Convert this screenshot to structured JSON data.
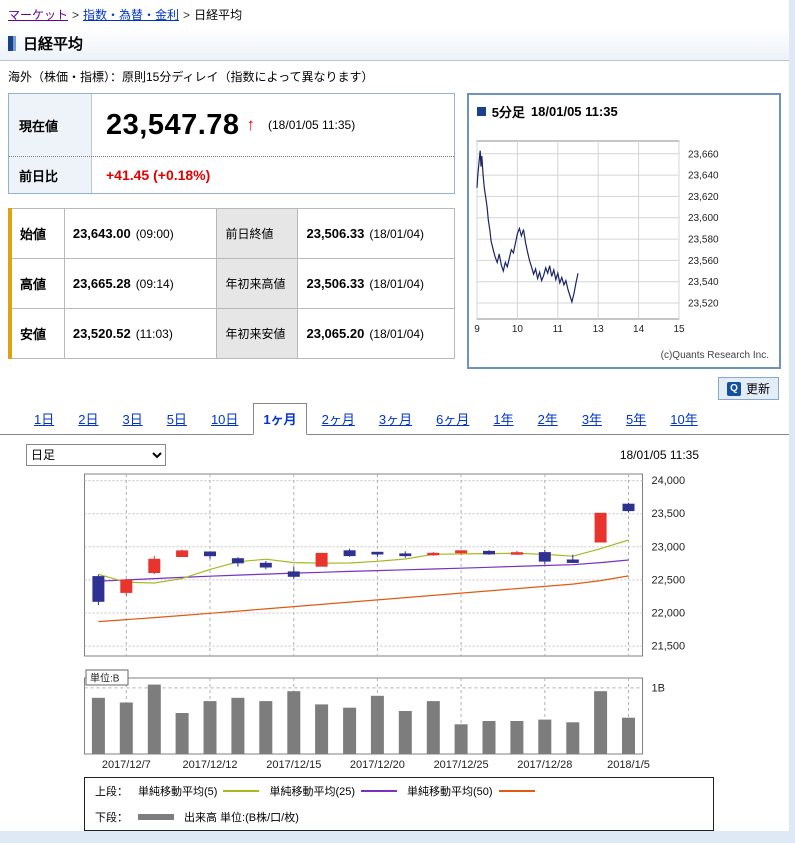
{
  "breadcrumb": {
    "separator": ">",
    "items": [
      "マーケット",
      "指数・為替・金利",
      "日経平均"
    ]
  },
  "page": {
    "title": "日経平均",
    "delay_note": "海外（株価・指標）：原則15分ディレイ（指数によって異なります）"
  },
  "quote": {
    "current_label": "現在値",
    "current_value": "23,547.78",
    "direction_arrow": "↑",
    "timestamp": "(18/01/05 11:35)",
    "change_label": "前日比",
    "change_value": "+41.45 (+0.18%)"
  },
  "stats": {
    "rows": [
      [
        {
          "label": "始値",
          "value": "23,643.00",
          "note": "(09:00)"
        },
        {
          "label": "前日終値",
          "value": "23,506.33",
          "note": "(18/01/04)"
        }
      ],
      [
        {
          "label": "高値",
          "value": "23,665.28",
          "note": "(09:14)"
        },
        {
          "label": "年初来高値",
          "value": "23,506.33",
          "note": "(18/01/04)"
        }
      ],
      [
        {
          "label": "安値",
          "value": "23,520.52",
          "note": "(11:03)"
        },
        {
          "label": "年初来安値",
          "value": "23,065.20",
          "note": "(18/01/04)"
        }
      ]
    ]
  },
  "intraday_panel": {
    "title": "5分足",
    "timestamp": "18/01/05 11:35",
    "copyright": "(c)Quants Research Inc."
  },
  "refresh_button": {
    "label": "更新",
    "icon_glyph": "Q"
  },
  "period_tabs": {
    "items": [
      "1日",
      "2日",
      "3日",
      "5日",
      "10日",
      "1ヶ月",
      "2ヶ月",
      "3ヶ月",
      "6ヶ月",
      "1年",
      "2年",
      "3年",
      "5年",
      "10年"
    ],
    "selected": "1ヶ月"
  },
  "chart_controls": {
    "interval_selected": "日足",
    "timestamp": "18/01/05 11:35"
  },
  "legend": {
    "upper_label": "上段：",
    "ma5_label": "単純移動平均(5)",
    "ma25_label": "単純移動平均(25)",
    "ma50_label": "単純移動平均(50)",
    "lower_label": "下段：",
    "volume_label": "出来高 単位:(B株/口/枚)"
  },
  "colors": {
    "accent_navy": "#16418c",
    "up_candle": "#e8342c",
    "down_candle": "#2e3192",
    "ma5": "#a8b820",
    "ma25": "#7a30c0",
    "ma50": "#e05a10",
    "volume_bar": "#7d7d7d",
    "change_positive": "#e00000",
    "intraday_line": "#1c2461"
  },
  "chart_data": [
    {
      "type": "line",
      "title": "5分足 18/01/05 11:35",
      "x_ticks": [
        9,
        10,
        11,
        13,
        14,
        15
      ],
      "lunch_break": [
        11.5,
        12.5
      ],
      "ylim": [
        23505,
        23672
      ],
      "y_ticks": [
        23520,
        23540,
        23560,
        23580,
        23600,
        23620,
        23640,
        23660
      ],
      "points": [
        [
          9.0,
          23628
        ],
        [
          9.02,
          23640
        ],
        [
          9.05,
          23652
        ],
        [
          9.08,
          23663
        ],
        [
          9.1,
          23648
        ],
        [
          9.12,
          23658
        ],
        [
          9.15,
          23640
        ],
        [
          9.18,
          23628
        ],
        [
          9.22,
          23618
        ],
        [
          9.25,
          23610
        ],
        [
          9.28,
          23598
        ],
        [
          9.32,
          23588
        ],
        [
          9.35,
          23578
        ],
        [
          9.4,
          23570
        ],
        [
          9.45,
          23563
        ],
        [
          9.5,
          23558
        ],
        [
          9.55,
          23566
        ],
        [
          9.6,
          23556
        ],
        [
          9.65,
          23550
        ],
        [
          9.7,
          23558
        ],
        [
          9.75,
          23554
        ],
        [
          9.8,
          23562
        ],
        [
          9.85,
          23570
        ],
        [
          9.9,
          23567
        ],
        [
          9.95,
          23576
        ],
        [
          10.0,
          23585
        ],
        [
          10.05,
          23590
        ],
        [
          10.1,
          23583
        ],
        [
          10.15,
          23589
        ],
        [
          10.2,
          23577
        ],
        [
          10.25,
          23568
        ],
        [
          10.3,
          23560
        ],
        [
          10.35,
          23554
        ],
        [
          10.4,
          23547
        ],
        [
          10.45,
          23552
        ],
        [
          10.5,
          23543
        ],
        [
          10.55,
          23549
        ],
        [
          10.6,
          23541
        ],
        [
          10.65,
          23546
        ],
        [
          10.7,
          23553
        ],
        [
          10.75,
          23548
        ],
        [
          10.8,
          23555
        ],
        [
          10.85,
          23545
        ],
        [
          10.9,
          23551
        ],
        [
          10.95,
          23542
        ],
        [
          11.0,
          23548
        ],
        [
          11.05,
          23539
        ],
        [
          11.1,
          23544
        ],
        [
          11.15,
          23537
        ],
        [
          11.2,
          23541
        ],
        [
          11.25,
          23533
        ],
        [
          11.3,
          23527
        ],
        [
          11.35,
          23521
        ],
        [
          11.4,
          23529
        ],
        [
          11.45,
          23539
        ],
        [
          11.5,
          23548
        ]
      ]
    },
    {
      "type": "candlestick",
      "title": "日経平均 日足（1ヶ月）",
      "ylim": [
        21350,
        24100
      ],
      "y_ticks": [
        21500,
        22000,
        22500,
        23000,
        23500,
        24000
      ],
      "dates": [
        "12/6",
        "12/7",
        "12/8",
        "12/11",
        "12/12",
        "12/13",
        "12/14",
        "12/15",
        "12/18",
        "12/19",
        "12/20",
        "12/21",
        "12/22",
        "12/25",
        "12/26",
        "12/27",
        "12/28",
        "12/29",
        "1/4",
        "1/5"
      ],
      "x_label_positions": [
        {
          "label": "2017/12/7",
          "index": 1
        },
        {
          "label": "2017/12/12",
          "index": 4
        },
        {
          "label": "2017/12/15",
          "index": 7
        },
        {
          "label": "2017/12/20",
          "index": 10
        },
        {
          "label": "2017/12/25",
          "index": 13
        },
        {
          "label": "2017/12/28",
          "index": 16
        },
        {
          "label": "2018/1/5",
          "index": 19
        }
      ],
      "ohlc": [
        [
          22550,
          22580,
          22119,
          22177
        ],
        [
          22310,
          22515,
          22262,
          22498
        ],
        [
          22612,
          22864,
          22588,
          22811
        ],
        [
          22854,
          22956,
          22850,
          22938
        ],
        [
          22922,
          22934,
          22812,
          22866
        ],
        [
          22820,
          22843,
          22703,
          22758
        ],
        [
          22750,
          22787,
          22662,
          22694
        ],
        [
          22620,
          22698,
          22520,
          22553
        ],
        [
          22707,
          22910,
          22705,
          22901
        ],
        [
          22940,
          22971,
          22851,
          22868
        ],
        [
          22917,
          22925,
          22845,
          22891
        ],
        [
          22892,
          22932,
          22834,
          22866
        ],
        [
          22890,
          22920,
          22863,
          22902
        ],
        [
          22910,
          22946,
          22881,
          22939
        ],
        [
          22930,
          22950,
          22877,
          22892
        ],
        [
          22890,
          22936,
          22880,
          22911
        ],
        [
          22912,
          22954,
          22736,
          22783
        ],
        [
          22800,
          22881,
          22753,
          22764
        ],
        [
          23073,
          23506,
          23065,
          23506
        ],
        [
          23643,
          23665,
          23520,
          23547
        ]
      ],
      "ma5": [
        22585,
        22463,
        22453,
        22520,
        22658,
        22774,
        22813,
        22762,
        22754,
        22755,
        22781,
        22816,
        22886,
        22893,
        22898,
        22902,
        22885,
        22858,
        22971,
        23102
      ],
      "ma25": [
        22480,
        22500,
        22520,
        22538,
        22556,
        22572,
        22588,
        22602,
        22615,
        22628,
        22640,
        22652,
        22664,
        22676,
        22690,
        22704,
        22718,
        22730,
        22762,
        22800
      ],
      "ma50": [
        21870,
        21900,
        21930,
        21962,
        21995,
        22028,
        22062,
        22096,
        22130,
        22164,
        22198,
        22232,
        22266,
        22300,
        22334,
        22368,
        22402,
        22436,
        22490,
        22560
      ],
      "volume_b": [
        0.85,
        0.78,
        1.05,
        0.62,
        0.8,
        0.85,
        0.8,
        0.95,
        0.75,
        0.7,
        0.88,
        0.65,
        0.8,
        0.45,
        0.5,
        0.5,
        0.52,
        0.48,
        0.95,
        0.55
      ],
      "volume_unit_label": "単位:B",
      "volume_tick_label": "1B"
    }
  ]
}
